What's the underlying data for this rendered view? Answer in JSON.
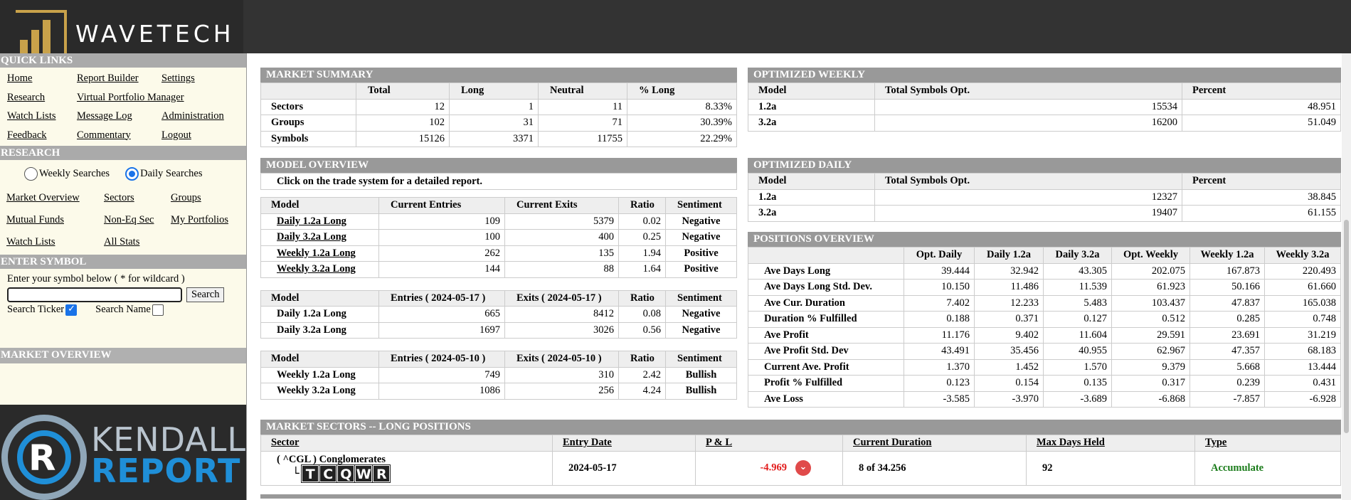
{
  "brand": {
    "name": "WAVETECH",
    "partner": "KENDALL REPORT",
    "partner_line1": "KENDALL",
    "partner_line2": "REPORT",
    "accent": "#c9a24a",
    "partner_accent": "#1f8fd8"
  },
  "sidebar": {
    "quick_links_title": "QUICK LINKS",
    "quick_links": [
      "Home",
      "Report Builder",
      "Settings",
      "Research",
      "Virtual Portfolio Manager",
      "",
      "Watch Lists",
      "Message Log",
      "Administration",
      "Feedback",
      "Commentary",
      "Logout"
    ],
    "research_title": "RESEARCH",
    "weekly_label": "Weekly Searches",
    "daily_label": "Daily Searches",
    "selected_search": "Daily Searches",
    "research_links": [
      "Market Overview",
      "Sectors",
      "Groups",
      "Mutual Funds",
      "Non-Eq Sec",
      "My Portfolios",
      "Watch Lists",
      "All Stats",
      ""
    ],
    "enter_symbol_title": "ENTER SYMBOL",
    "enter_symbol_hint": "Enter your symbol below ( * for wildcard )",
    "symbol_value": "",
    "search_button": "Search",
    "search_ticker_label": "Search Ticker",
    "search_ticker_checked": true,
    "search_name_label": "Search Name",
    "search_name_checked": false,
    "market_overview_title": "MARKET OVERVIEW"
  },
  "market_summary": {
    "title": "MARKET SUMMARY",
    "headers": [
      "",
      "Total",
      "Long",
      "Neutral",
      "% Long"
    ],
    "rows": [
      [
        "Sectors",
        "12",
        "1",
        "11",
        "8.33%"
      ],
      [
        "Groups",
        "102",
        "31",
        "71",
        "30.39%"
      ],
      [
        "Symbols",
        "15126",
        "3371",
        "11755",
        "22.29%"
      ]
    ]
  },
  "optimized_weekly": {
    "title": "OPTIMIZED WEEKLY",
    "headers": [
      "Model",
      "Total Symbols Opt.",
      "Percent"
    ],
    "rows": [
      [
        "1.2a",
        "15534",
        "48.951"
      ],
      [
        "3.2a",
        "16200",
        "51.049"
      ]
    ]
  },
  "optimized_daily": {
    "title": "OPTIMIZED DAILY",
    "headers": [
      "Model",
      "Total Symbols Opt.",
      "Percent"
    ],
    "rows": [
      [
        "1.2a",
        "12327",
        "38.845"
      ],
      [
        "3.2a",
        "19407",
        "61.155"
      ]
    ]
  },
  "model_overview": {
    "title": "MODEL OVERVIEW",
    "note": "Click on the trade system for a detailed report.",
    "table1": {
      "headers": [
        "Model",
        "Current Entries",
        "Current Exits",
        "Ratio",
        "Sentiment"
      ],
      "rows": [
        [
          "Daily 1.2a Long",
          "109",
          "5379",
          "0.02",
          "Negative"
        ],
        [
          "Daily 3.2a Long",
          "100",
          "400",
          "0.25",
          "Negative"
        ],
        [
          "Weekly 1.2a Long",
          "262",
          "135",
          "1.94",
          "Positive"
        ],
        [
          "Weekly 3.2a Long",
          "144",
          "88",
          "1.64",
          "Positive"
        ]
      ]
    },
    "table2": {
      "headers": [
        "Model",
        "Entries ( 2024-05-17 )",
        "Exits ( 2024-05-17 )",
        "Ratio",
        "Sentiment"
      ],
      "rows": [
        [
          "Daily 1.2a Long",
          "665",
          "8412",
          "0.08",
          "Negative"
        ],
        [
          "Daily 3.2a Long",
          "1697",
          "3026",
          "0.56",
          "Negative"
        ]
      ]
    },
    "table3": {
      "headers": [
        "Model",
        "Entries ( 2024-05-10 )",
        "Exits ( 2024-05-10 )",
        "Ratio",
        "Sentiment"
      ],
      "rows": [
        [
          "Weekly 1.2a Long",
          "749",
          "310",
          "2.42",
          "Bullish"
        ],
        [
          "Weekly 3.2a Long",
          "1086",
          "256",
          "4.24",
          "Bullish"
        ]
      ]
    }
  },
  "positions_overview": {
    "title": "POSITIONS OVERVIEW",
    "headers": [
      "",
      "Opt. Daily",
      "Daily 1.2a",
      "Daily 3.2a",
      "Opt. Weekly",
      "Weekly 1.2a",
      "Weekly 3.2a"
    ],
    "rows": [
      [
        "Ave Days Long",
        "39.444",
        "32.942",
        "43.305",
        "202.075",
        "167.873",
        "220.493"
      ],
      [
        "Ave Days Long Std. Dev.",
        "10.150",
        "11.486",
        "11.539",
        "61.923",
        "50.166",
        "61.660"
      ],
      [
        "Ave Cur. Duration",
        "7.402",
        "12.233",
        "5.483",
        "103.437",
        "47.837",
        "165.038"
      ],
      [
        "Duration % Fulfilled",
        "0.188",
        "0.371",
        "0.127",
        "0.512",
        "0.285",
        "0.748"
      ],
      [
        "Ave Profit",
        "11.176",
        "9.402",
        "11.604",
        "29.591",
        "23.691",
        "31.219"
      ],
      [
        "Ave Profit Std. Dev",
        "43.491",
        "35.456",
        "40.955",
        "62.967",
        "47.357",
        "68.183"
      ],
      [
        "Current Ave. Profit",
        "1.370",
        "1.452",
        "1.570",
        "9.379",
        "5.668",
        "13.444"
      ],
      [
        "Profit % Fulfilled",
        "0.123",
        "0.154",
        "0.135",
        "0.317",
        "0.239",
        "0.431"
      ],
      [
        "Ave Loss",
        "-3.585",
        "-3.970",
        "-3.689",
        "-6.868",
        "-7.857",
        "-6.928"
      ]
    ]
  },
  "market_sectors": {
    "title": "MARKET SECTORS -- LONG POSITIONS",
    "headers": [
      "Sector",
      "Entry Date",
      "P & L",
      "Current Duration",
      "Max Days Held",
      "Type"
    ],
    "row": {
      "sector": "( ^CGL ) Conglomerates",
      "tree_glyph": "└",
      "letters": [
        "T",
        "C",
        "Q",
        "W",
        "R"
      ],
      "entry_date": "2024-05-17",
      "pnl": "-4.969",
      "pnl_color": "#e21b1b",
      "trend_icon": "down-chevron-badge",
      "duration": "8 of 34.256",
      "max_days": "92",
      "type": "Accumulate",
      "type_color": "#1b7c1b"
    }
  }
}
